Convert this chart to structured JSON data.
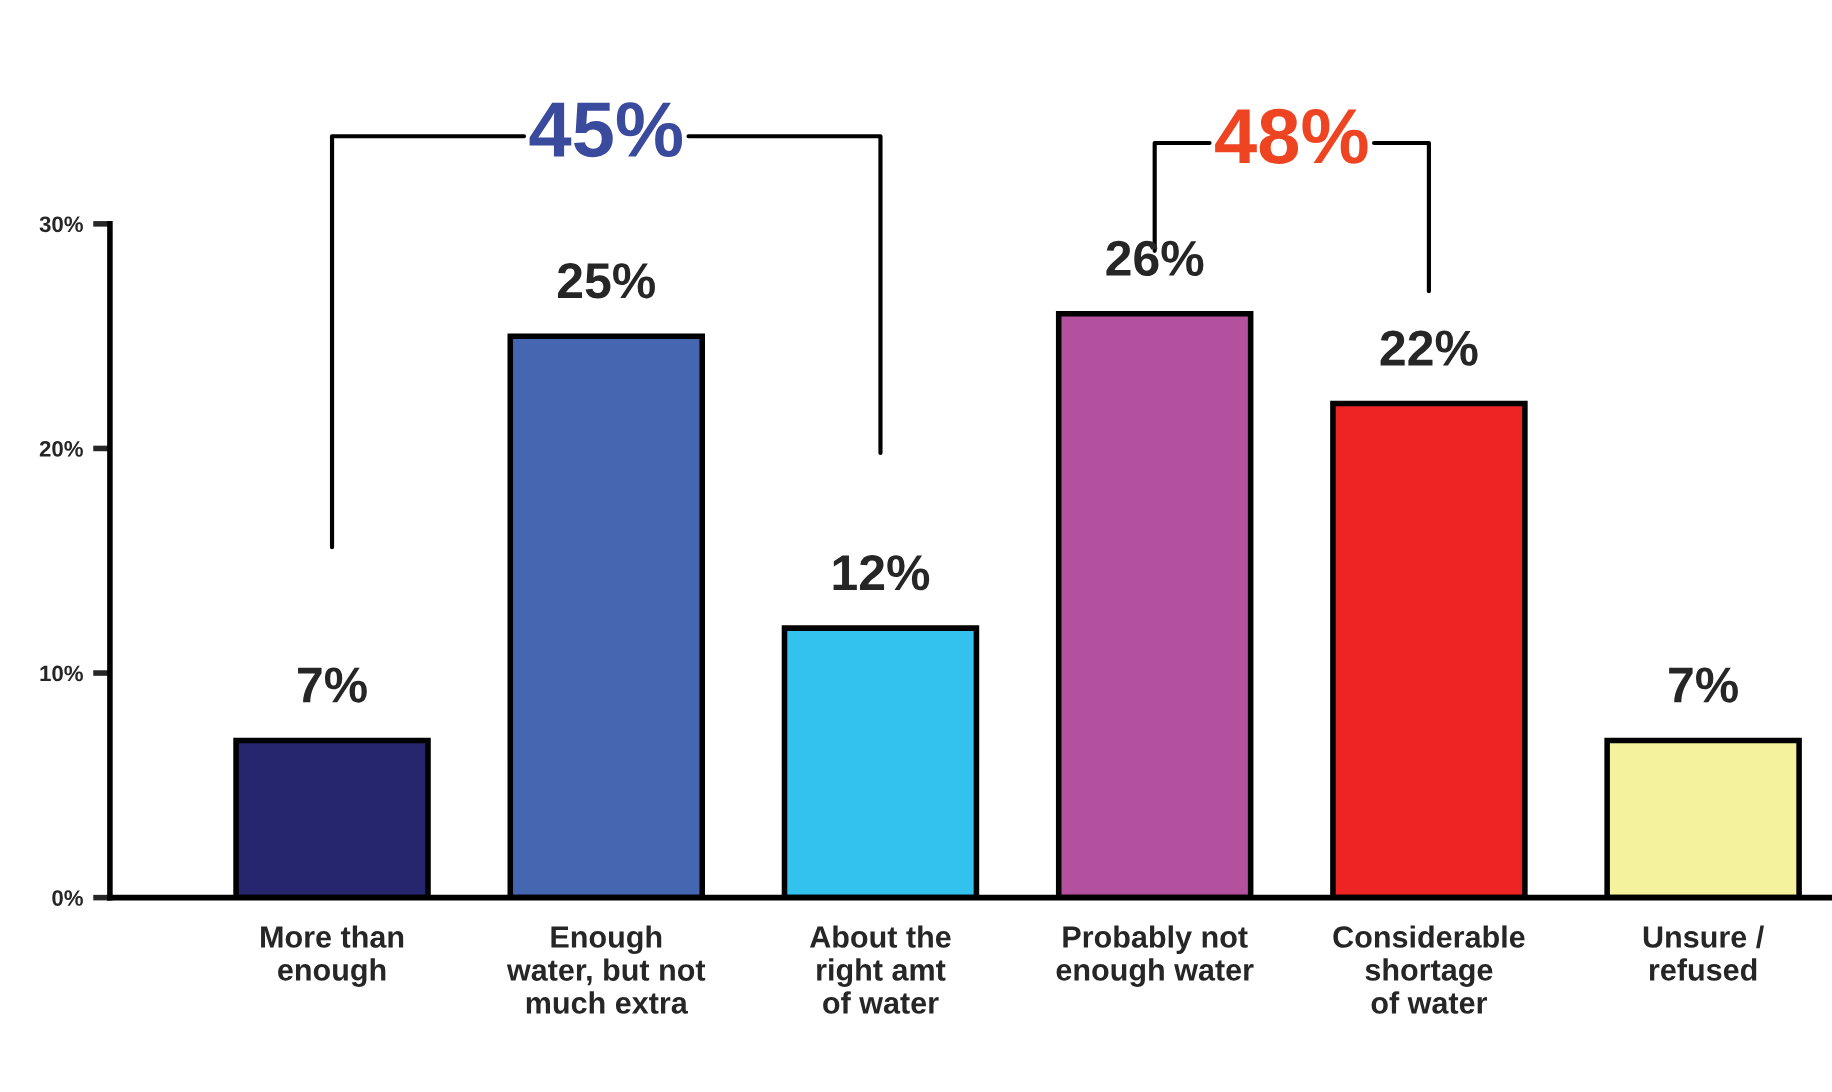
{
  "chart_data": {
    "type": "bar",
    "categories": [
      "More than\nenough",
      "Enough\nwater, but not\nmuch extra",
      "About the\nright amt\nof water",
      "Probably not\nenough water",
      "Considerable\nshortage\nof water",
      "Unsure /\nrefused"
    ],
    "values": [
      7,
      25,
      12,
      26,
      22,
      7
    ],
    "colors": [
      "#25266e",
      "#4566b0",
      "#33c2ee",
      "#b3519e",
      "#ee2424",
      "#f4f29c"
    ],
    "ylim": [
      0,
      30
    ],
    "yticks": [
      {
        "value": 0,
        "label": "0%"
      },
      {
        "value": 10,
        "label": "10%"
      },
      {
        "value": 20,
        "label": "20%"
      },
      {
        "value": 30,
        "label": "30%"
      }
    ],
    "data_labels": true,
    "value_labels": [
      "7%",
      "25%",
      "12%",
      "26%",
      "22%",
      "7%"
    ],
    "annotations": [
      "45%",
      "48%"
    ],
    "grid": false,
    "legend": false
  }
}
